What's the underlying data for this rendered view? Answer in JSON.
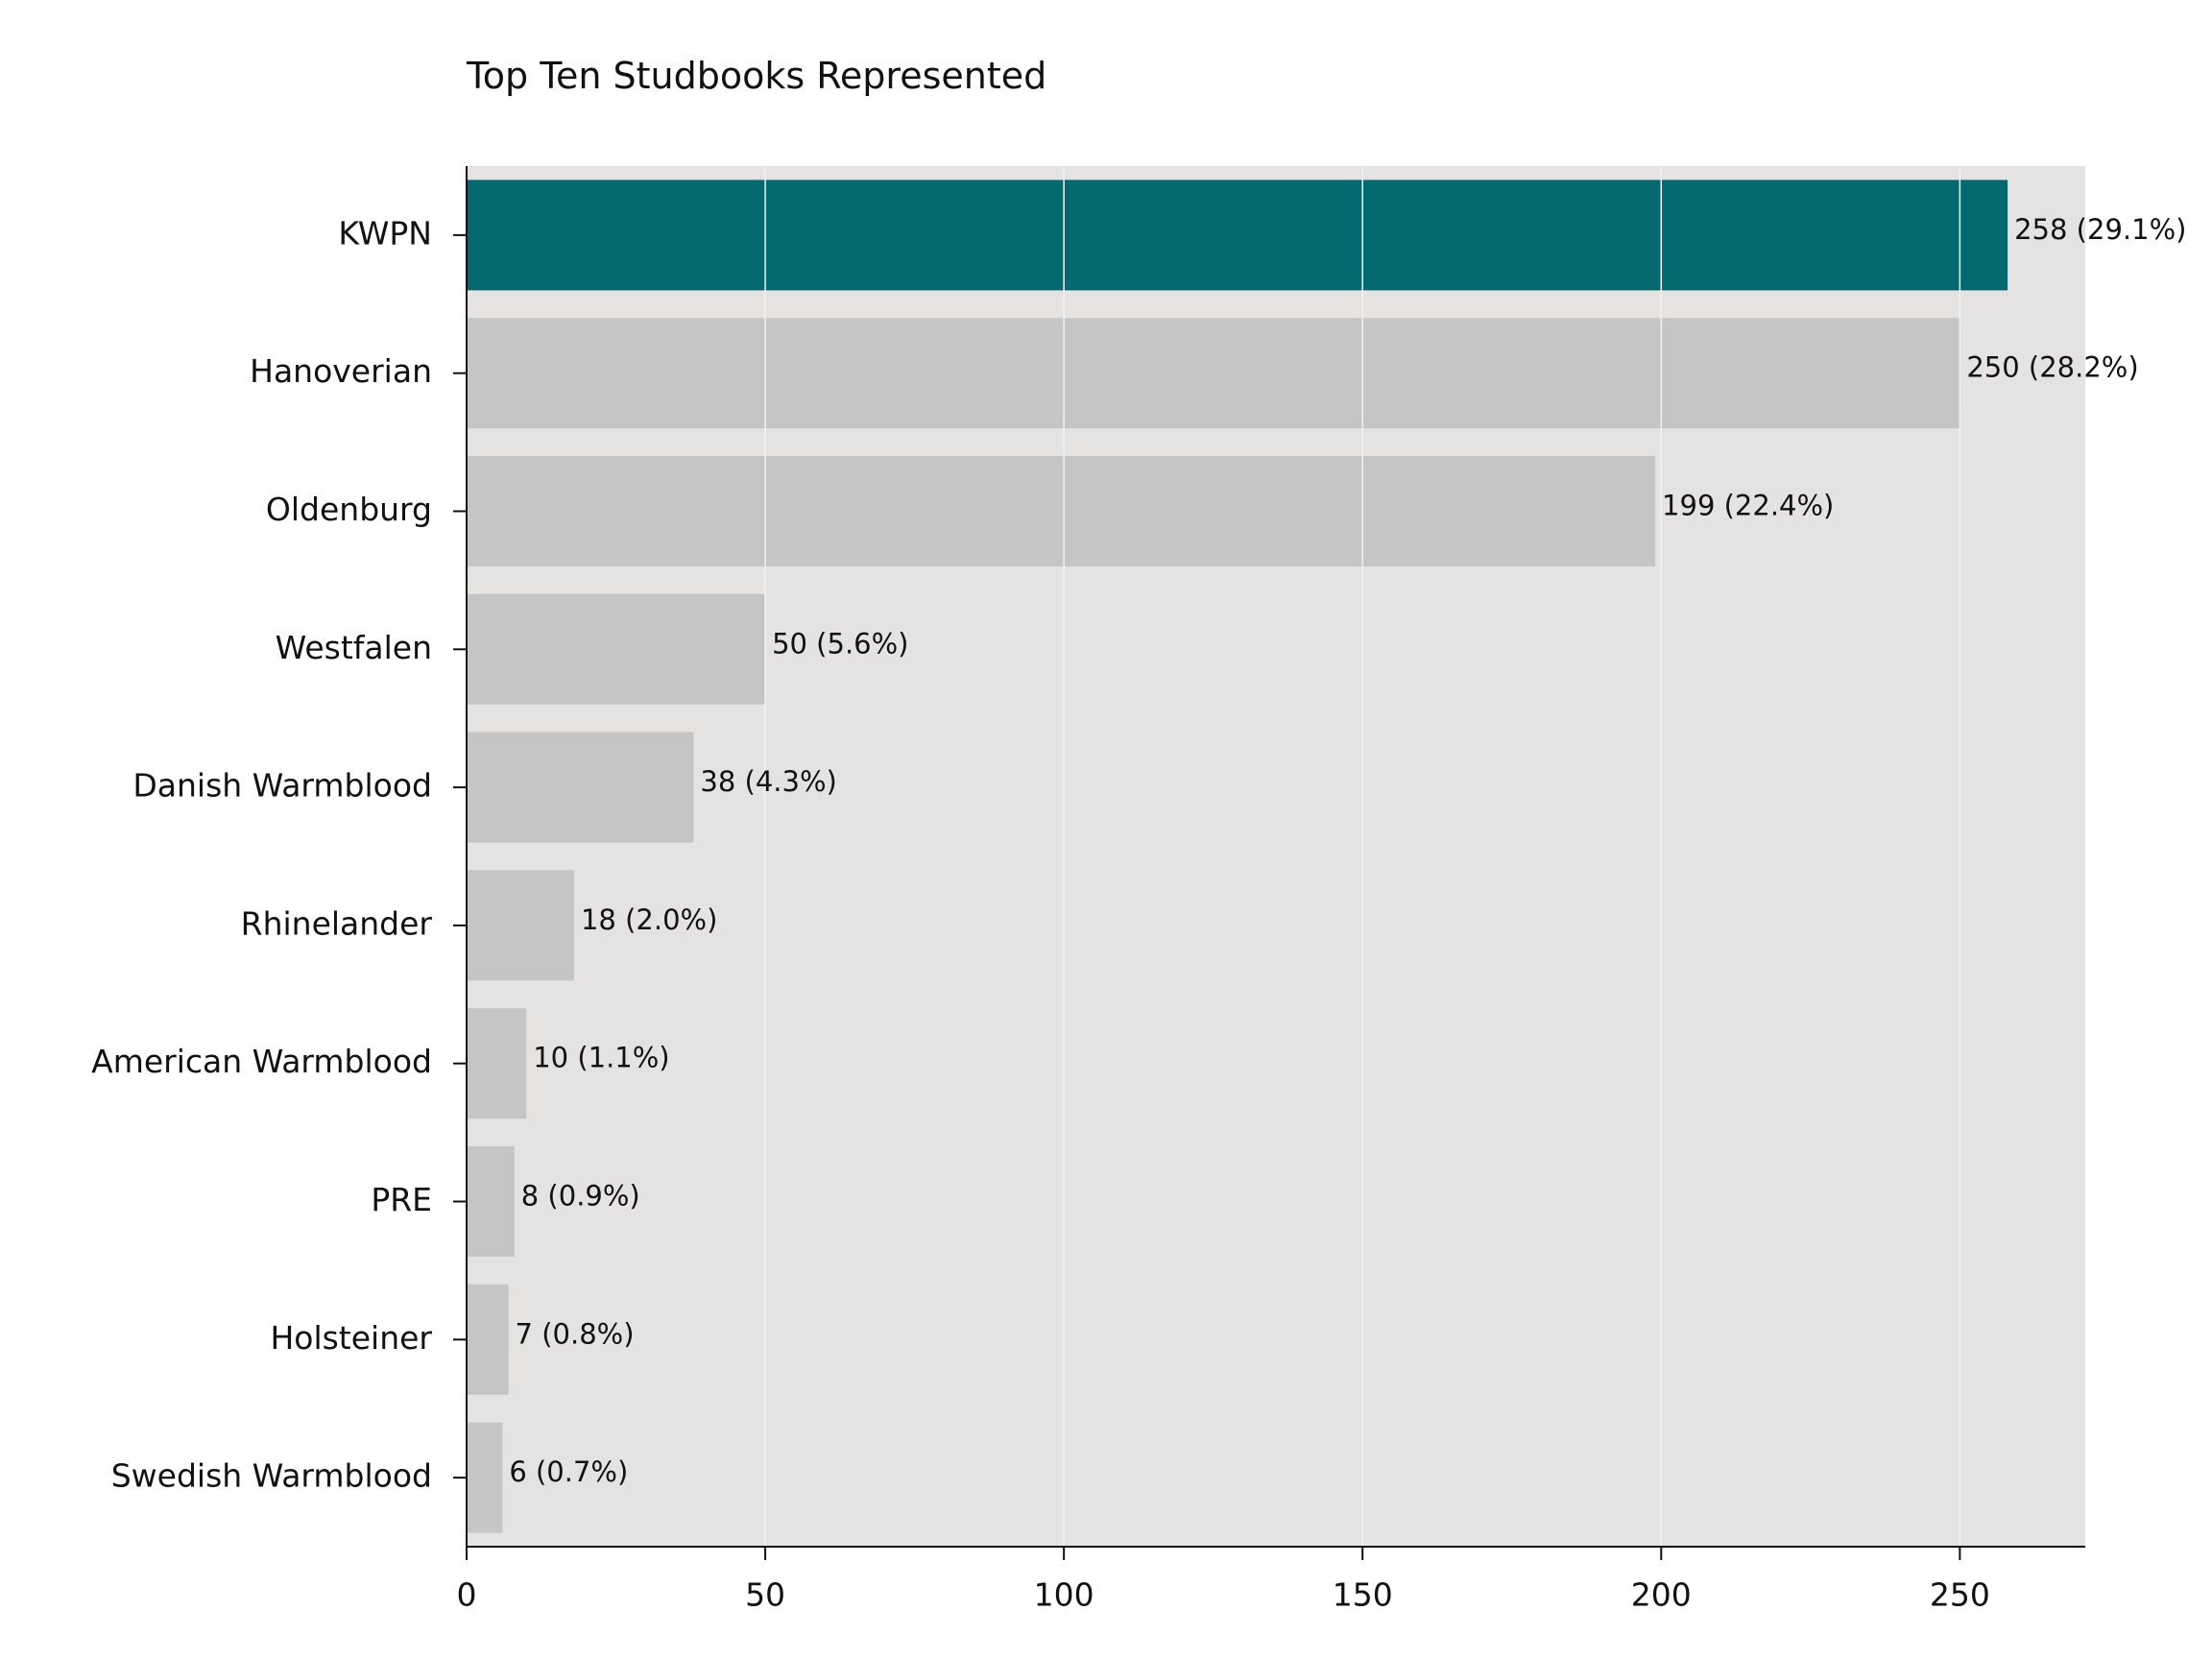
{
  "chart_data": {
    "type": "bar",
    "orientation": "horizontal",
    "title": "Top Ten Studbooks Represented",
    "xlabel": "",
    "ylabel": "",
    "xlim": [
      0,
      271
    ],
    "xticks": [
      0,
      50,
      100,
      150,
      200,
      250
    ],
    "grid": true,
    "legend": "none",
    "categories": [
      "KWPN",
      "Hanoverian",
      "Oldenburg",
      "Westfalen",
      "Danish Warmblood",
      "Rhinelander",
      "American Warmblood",
      "PRE",
      "Holsteiner",
      "Swedish Warmblood"
    ],
    "values": [
      258,
      250,
      199,
      50,
      38,
      18,
      10,
      8,
      7,
      6
    ],
    "data_labels": [
      "258 (29.1%)",
      "250 (28.2%)",
      "199 (22.4%)",
      "50 (5.6%)",
      "38 (4.3%)",
      "18 (2.0%)",
      "10 (1.1%)",
      "8 (0.9%)",
      "7 (0.8%)",
      "6 (0.7%)"
    ],
    "colors": {
      "highlight": "#046a70",
      "default": "#bfbfbf",
      "plot_background": "#e4e3e1",
      "grid": "#f2f2f2",
      "axis": "#111111"
    },
    "highlight_index": 0
  }
}
